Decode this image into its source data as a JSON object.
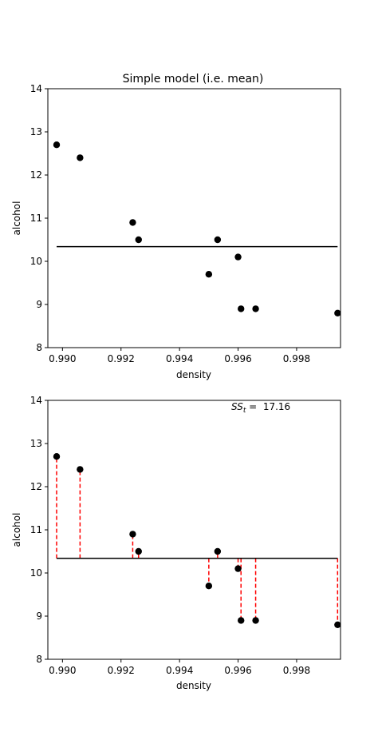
{
  "chart_data": [
    {
      "type": "scatter",
      "title": "Simple model (i.e. mean)",
      "xlabel": "density",
      "ylabel": "alcohol",
      "xlim": [
        0.9895,
        0.9995
      ],
      "ylim": [
        8,
        14
      ],
      "xticks": [
        0.99,
        0.992,
        0.994,
        0.996,
        0.998
      ],
      "xtick_labels": [
        "0.990",
        "0.992",
        "0.994",
        "0.996",
        "0.998"
      ],
      "yticks": [
        8,
        9,
        10,
        11,
        12,
        13,
        14
      ],
      "ytick_labels": [
        "8",
        "9",
        "10",
        "11",
        "12",
        "13",
        "14"
      ],
      "x": [
        0.9898,
        0.9906,
        0.9924,
        0.9926,
        0.995,
        0.9953,
        0.996,
        0.9961,
        0.9966,
        0.9994
      ],
      "y": [
        12.7,
        12.4,
        10.9,
        10.5,
        9.7,
        10.5,
        10.1,
        8.9,
        8.9,
        8.8
      ],
      "mean": 10.34,
      "mean_line_color": "#000000",
      "point_color": "#000000",
      "grid": false
    },
    {
      "type": "scatter",
      "title": "",
      "xlabel": "density",
      "ylabel": "alcohol",
      "xlim": [
        0.9895,
        0.9995
      ],
      "ylim": [
        8,
        14
      ],
      "xticks": [
        0.99,
        0.992,
        0.994,
        0.996,
        0.998
      ],
      "xtick_labels": [
        "0.990",
        "0.992",
        "0.994",
        "0.996",
        "0.998"
      ],
      "yticks": [
        8,
        9,
        10,
        11,
        12,
        13,
        14
      ],
      "ytick_labels": [
        "8",
        "9",
        "10",
        "11",
        "12",
        "13",
        "14"
      ],
      "x": [
        0.9898,
        0.9906,
        0.9924,
        0.9926,
        0.995,
        0.9953,
        0.996,
        0.9961,
        0.9966,
        0.9994
      ],
      "y": [
        12.7,
        12.4,
        10.9,
        10.5,
        9.7,
        10.5,
        10.1,
        8.9,
        8.9,
        8.8
      ],
      "mean": 10.34,
      "residual_color": "#ff0000",
      "mean_line_color": "#000000",
      "point_color": "#000000",
      "annotation": {
        "label_main": "SS",
        "label_sub": "t",
        "label_rest": " =  17.16",
        "position": "top-right"
      },
      "grid": false
    }
  ]
}
